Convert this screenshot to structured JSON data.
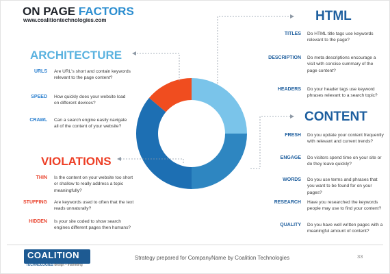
{
  "header": {
    "title_part1": "ON PAGE ",
    "title_part2": "FACTORS",
    "url": "www.coalitiontechnologies.com"
  },
  "colors": {
    "architecture": "#7ac4ea",
    "html": "#2e86c1",
    "content": "#1d6fb3",
    "violations": "#f04d1f",
    "dark_text": "#20242b"
  },
  "donut": {
    "segments": [
      {
        "name": "architecture",
        "start_deg": 270,
        "end_deg": 360,
        "color": "#7ac4ea"
      },
      {
        "name": "html",
        "start_deg": 0,
        "end_deg": 90,
        "color": "#2e86c1"
      },
      {
        "name": "content",
        "start_deg": 90,
        "end_deg": 220,
        "color": "#1d6fb3"
      },
      {
        "name": "violations",
        "start_deg": 220,
        "end_deg": 270,
        "color": "#f04d1f"
      }
    ]
  },
  "sections": {
    "architecture": {
      "heading": "ARCHITECTURE",
      "items": [
        {
          "key": "URLS",
          "desc": "Are URL's short and contain keywords relevant to the page content?"
        },
        {
          "key": "SPEED",
          "desc": "How quickly does your website load on different devices?"
        },
        {
          "key": "CRAWL",
          "desc": "Can a search engine easily navigate all of the content of your website?"
        }
      ]
    },
    "violations": {
      "heading": "VIOLATIONS",
      "items": [
        {
          "key": "THIN",
          "desc": "Is the content on your website too short or shallow to really address a topic meaningfully?"
        },
        {
          "key": "STUFFING",
          "desc": "Are keywords used to often that the text reads unnaturally?"
        },
        {
          "key": "HIDDEN",
          "desc": "Is your site coded to show search engines different pages then humans?"
        }
      ]
    },
    "html": {
      "heading": "HTML",
      "items": [
        {
          "key": "TITLES",
          "desc": "Do HTML title tags use keywords relevant to the page?"
        },
        {
          "key": "DESCRIPTION",
          "desc": "Do meta descriptions encourage a visit with concise summary of the page content?"
        },
        {
          "key": "HEADERS",
          "desc": "Do your header tags use keyword phrases relevant to a search topic?"
        }
      ]
    },
    "content": {
      "heading": "CONTENT",
      "items": [
        {
          "key": "FRESH",
          "desc": "Do you update your content frequently with relevant and current trends?"
        },
        {
          "key": "ENGAGE",
          "desc": "Do visitors spend time on your site or do they leave quickly?"
        },
        {
          "key": "WORDS",
          "desc": "Do you use terms and phrases that you want to be found for on your pages?"
        },
        {
          "key": "RESEARCH",
          "desc": "Have you researched the keywords people may use to find your content?"
        },
        {
          "key": "QUALITY",
          "desc": "Do you have well written pages with a meaningful amount of content?"
        }
      ]
    }
  },
  "footer": {
    "logo_main": "COALITION",
    "logo_sub": "TECHNOLOGIES",
    "logo_tag": "design • marketing",
    "strategy_text": "Strategy prepared for CompanyName by Coalition Technologies",
    "page_number": "33"
  }
}
